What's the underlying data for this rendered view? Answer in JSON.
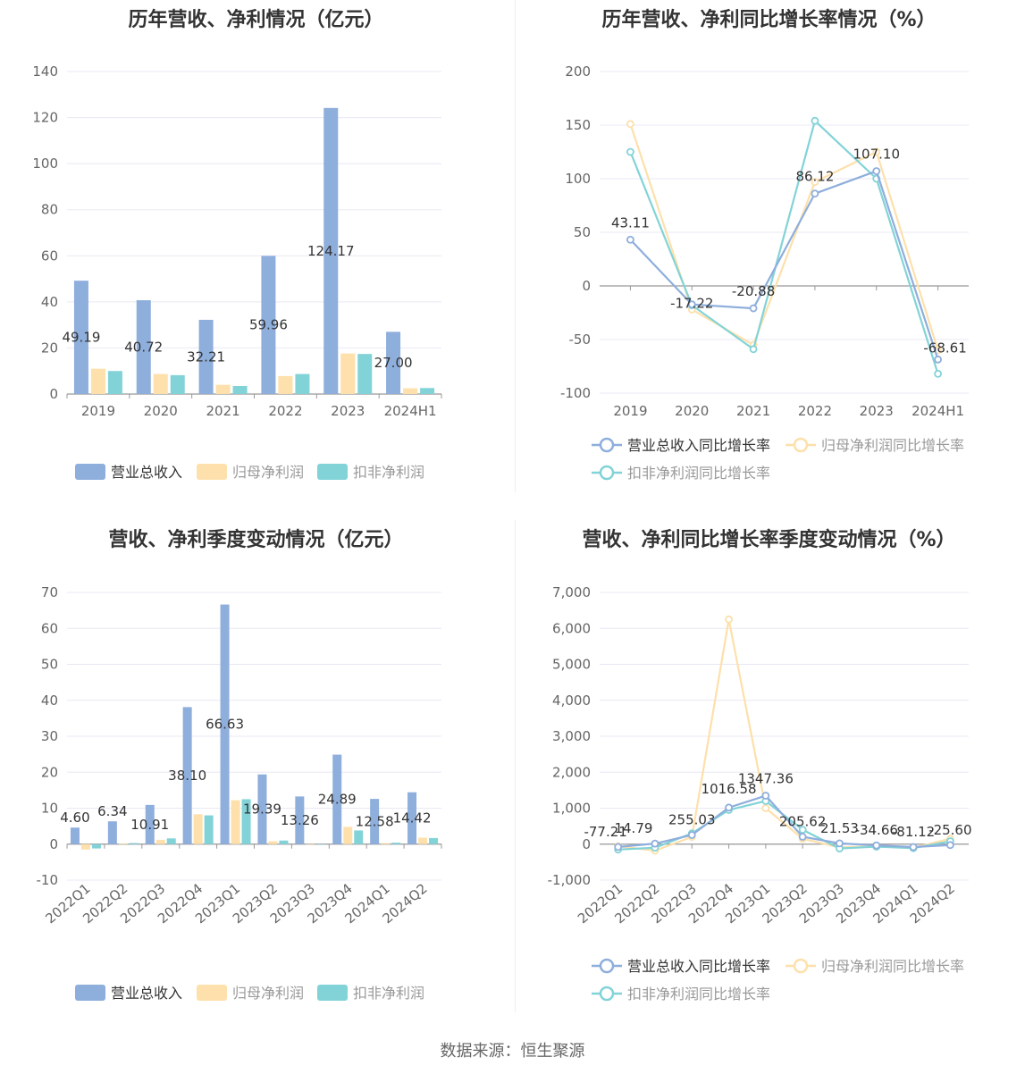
{
  "footer": "数据来源：恒生聚源",
  "colors": {
    "revenue": "#8eaedc",
    "parent_np": "#fde0ab",
    "deducted_np": "#82d3d7",
    "grid": "#e8e8f4",
    "axis": "#999999",
    "label": "#333333"
  },
  "chart_data": [
    {
      "id": "annual_amount",
      "type": "bar",
      "title": "历年营收、净利情况（亿元）",
      "categories": [
        "2019",
        "2020",
        "2021",
        "2022",
        "2023",
        "2024H1"
      ],
      "ylim": [
        0,
        140
      ],
      "yticks": [
        "0",
        "20",
        "40",
        "60",
        "80",
        "100",
        "120",
        "140"
      ],
      "series": [
        {
          "name": "营业总收入",
          "values": [
            49.19,
            40.72,
            32.21,
            59.96,
            124.17,
            27.0
          ],
          "labels": [
            "49.19",
            "40.72",
            "32.21",
            "59.96",
            "124.17",
            "27.00"
          ]
        },
        {
          "name": "归母净利润",
          "values": [
            11.0,
            8.7,
            4.0,
            7.8,
            17.6,
            2.5
          ]
        },
        {
          "name": "扣非净利润",
          "values": [
            10.0,
            8.2,
            3.5,
            8.7,
            17.4,
            2.6
          ]
        }
      ],
      "legend": "bottom"
    },
    {
      "id": "annual_growth",
      "type": "line",
      "title": "历年营收、净利同比增长率情况（%）",
      "categories": [
        "2019",
        "2020",
        "2021",
        "2022",
        "2023",
        "2024H1"
      ],
      "ylim": [
        -100,
        200
      ],
      "yticks": [
        "-100",
        "-50",
        "0",
        "50",
        "100",
        "150",
        "200"
      ],
      "series": [
        {
          "name": "营业总收入同比增长率",
          "values": [
            43.11,
            -17.22,
            -20.88,
            86.12,
            107.1,
            -68.61
          ],
          "labels": [
            "43.11",
            "-17.22",
            "-20.88",
            "86.12",
            "107.10",
            "-68.61"
          ]
        },
        {
          "name": "归母净利润同比增长率",
          "values": [
            151,
            -22,
            -55,
            97,
            125,
            -60
          ]
        },
        {
          "name": "扣非净利润同比增长率",
          "values": [
            125,
            -18,
            -59,
            154,
            100,
            -82
          ]
        }
      ],
      "legend": "bottom"
    },
    {
      "id": "quarterly_amount",
      "type": "bar",
      "title": "营收、净利季度变动情况（亿元）",
      "categories": [
        "2022Q1",
        "2022Q2",
        "2022Q3",
        "2022Q4",
        "2023Q1",
        "2023Q2",
        "2023Q3",
        "2023Q4",
        "2024Q1",
        "2024Q2"
      ],
      "ylim": [
        -10,
        70
      ],
      "yticks": [
        "-10",
        "0",
        "10",
        "20",
        "30",
        "40",
        "50",
        "60",
        "70"
      ],
      "series": [
        {
          "name": "营业总收入",
          "values": [
            4.6,
            6.34,
            10.91,
            38.1,
            66.63,
            19.39,
            13.26,
            24.89,
            12.58,
            14.42
          ],
          "labels": [
            "4.60",
            "6.34",
            "10.91",
            "38.10",
            "66.63",
            "19.39",
            "13.26",
            "24.89",
            "12.58",
            "14.42"
          ]
        },
        {
          "name": "归母净利润",
          "values": [
            -1.5,
            0.2,
            1.2,
            8.3,
            12.2,
            0.8,
            0.0,
            4.8,
            0.3,
            1.8
          ]
        },
        {
          "name": "扣非净利润",
          "values": [
            -1.2,
            0.3,
            1.6,
            8.0,
            12.5,
            1.0,
            0.0,
            3.8,
            0.4,
            1.7
          ]
        }
      ],
      "legend": "bottom"
    },
    {
      "id": "quarterly_growth",
      "type": "line",
      "title": "营收、净利同比增长率季度变动情况（%）",
      "categories": [
        "2022Q1",
        "2022Q2",
        "2022Q3",
        "2022Q4",
        "2023Q1",
        "2023Q2",
        "2023Q3",
        "2023Q4",
        "2024Q1",
        "2024Q2"
      ],
      "ylim": [
        -1000,
        7000
      ],
      "yticks": [
        "-1,000",
        "0",
        "1,000",
        "2,000",
        "3,000",
        "4,000",
        "5,000",
        "6,000",
        "7,000"
      ],
      "series": [
        {
          "name": "营业总收入同比增长率",
          "values": [
            -77.21,
            14.79,
            255.03,
            1016.58,
            1347.36,
            205.62,
            21.53,
            -34.66,
            -81.12,
            -25.6
          ],
          "labels": [
            "-77.21",
            "14.79",
            "255.03",
            "1016.58",
            "1347.36",
            "205.62",
            "21.53",
            "-34.66",
            "-81.12",
            "-25.60"
          ]
        },
        {
          "name": "归母净利润同比增长率",
          "values": [
            -60,
            -180,
            200,
            6250,
            1000,
            150,
            -90,
            -60,
            -100,
            150
          ]
        },
        {
          "name": "扣非净利润同比增长率",
          "values": [
            -150,
            -100,
            300,
            950,
            1200,
            400,
            -120,
            -70,
            -110,
            80
          ]
        }
      ],
      "legend": "bottom"
    }
  ]
}
